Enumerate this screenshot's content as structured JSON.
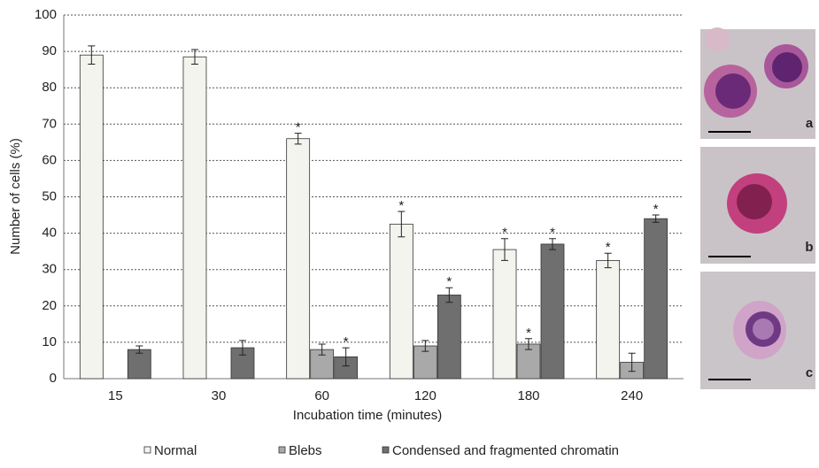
{
  "chart_data": {
    "type": "bar",
    "categories": [
      "15",
      "30",
      "60",
      "120",
      "180",
      "240"
    ],
    "x_label": "Incubation time (minutes)",
    "y_label": "Number of cells (%)",
    "ylim": [
      0,
      100
    ],
    "yticks": [
      0,
      10,
      20,
      30,
      40,
      50,
      60,
      70,
      80,
      90,
      100
    ],
    "grid": true,
    "significance_marker": "*",
    "series": [
      {
        "name": "Normal",
        "color": "#f4f4ef",
        "values": [
          89,
          88.5,
          66,
          42.5,
          35.5,
          32.5
        ],
        "errors": [
          2.5,
          2,
          1.5,
          3.5,
          3,
          2
        ],
        "significant": [
          false,
          false,
          true,
          true,
          true,
          true
        ]
      },
      {
        "name": "Blebs",
        "color": "#a9a9a9",
        "values": [
          null,
          null,
          8,
          9,
          9.5,
          4.5
        ],
        "errors": [
          null,
          null,
          1.5,
          1.5,
          1.5,
          2.5
        ],
        "significant": [
          false,
          false,
          false,
          false,
          true,
          false
        ]
      },
      {
        "name": "Condensed and fragmented chromatin",
        "color": "#6f6f6f",
        "values": [
          8,
          8.5,
          6,
          23,
          37,
          44
        ],
        "errors": [
          1,
          2,
          2.5,
          2,
          1.5,
          1
        ],
        "significant": [
          false,
          false,
          true,
          true,
          true,
          true
        ]
      }
    ],
    "legend": "bottom",
    "panel_labels": [
      "a",
      "b",
      "c"
    ]
  }
}
